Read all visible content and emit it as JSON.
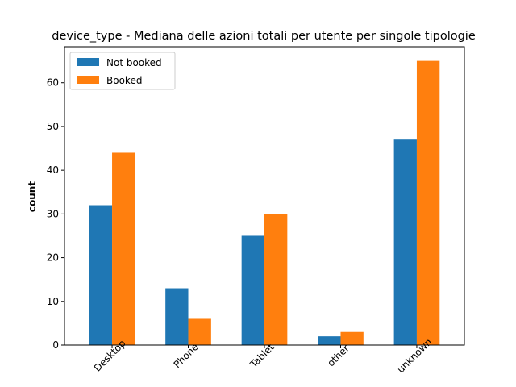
{
  "chart_data": {
    "type": "bar",
    "title": "device_type - Mediana delle azioni totali per utente per singole tipologie",
    "xlabel": "",
    "ylabel": "count",
    "categories": [
      "Desktop",
      "Phone",
      "Tablet",
      "other",
      "unknown"
    ],
    "series": [
      {
        "name": "Not booked",
        "color": "#1f77b4",
        "values": [
          32,
          13,
          25,
          2,
          47
        ]
      },
      {
        "name": "Booked",
        "color": "#ff7f0e",
        "values": [
          44,
          6,
          30,
          3,
          65
        ]
      }
    ],
    "ylim": [
      0,
      68.25
    ],
    "yticks": [
      0,
      10,
      20,
      30,
      40,
      50,
      60
    ],
    "grid": false,
    "legend_position": "top-left",
    "xtick_rotation": 45
  }
}
